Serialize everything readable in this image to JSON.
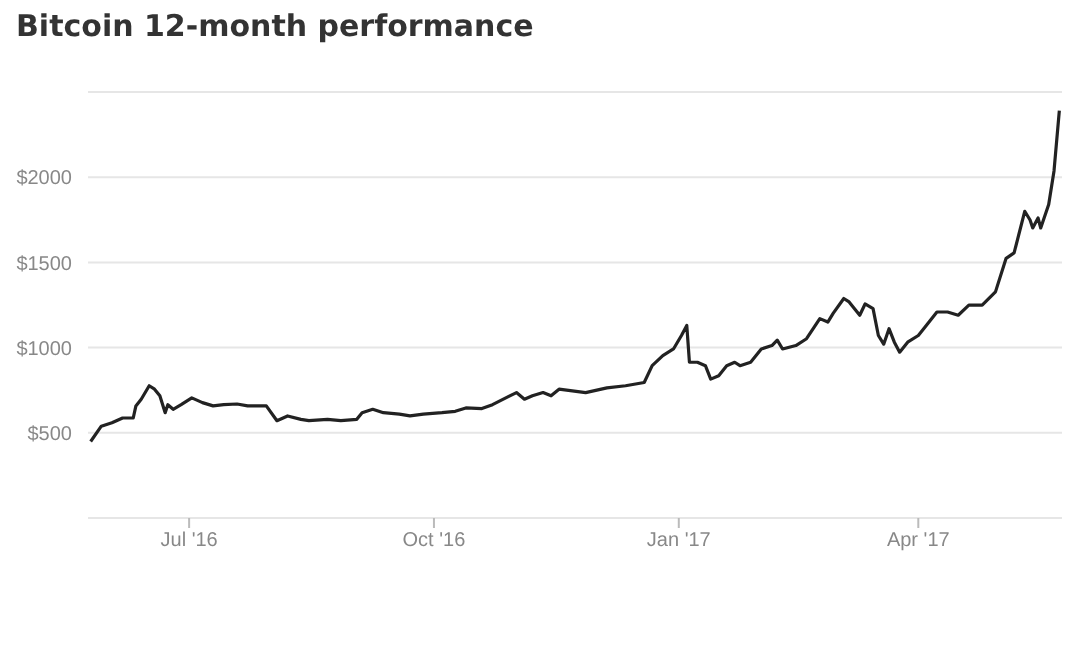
{
  "chart_data": {
    "type": "line",
    "title": "Bitcoin 12-month performance",
    "x": [
      "2016-05-25",
      "2016-05-29",
      "2016-06-02",
      "2016-06-06",
      "2016-06-10",
      "2016-06-11",
      "2016-06-13",
      "2016-06-16",
      "2016-06-18",
      "2016-06-20",
      "2016-06-22",
      "2016-06-23",
      "2016-06-25",
      "2016-06-28",
      "2016-07-02",
      "2016-07-06",
      "2016-07-10",
      "2016-07-14",
      "2016-07-19",
      "2016-07-23",
      "2016-07-26",
      "2016-07-30",
      "2016-08-03",
      "2016-08-07",
      "2016-08-12",
      "2016-08-15",
      "2016-08-22",
      "2016-08-27",
      "2016-09-02",
      "2016-09-04",
      "2016-09-08",
      "2016-09-12",
      "2016-09-18",
      "2016-09-22",
      "2016-09-27",
      "2016-10-04",
      "2016-10-09",
      "2016-10-13",
      "2016-10-19",
      "2016-10-23",
      "2016-10-28",
      "2016-11-01",
      "2016-11-04",
      "2016-11-07",
      "2016-11-11",
      "2016-11-14",
      "2016-11-17",
      "2016-11-27",
      "2016-12-05",
      "2016-12-12",
      "2016-12-19",
      "2016-12-22",
      "2016-12-26",
      "2016-12-30",
      "2017-01-02",
      "2017-01-04",
      "2017-01-05",
      "2017-01-08",
      "2017-01-11",
      "2017-01-13",
      "2017-01-16",
      "2017-01-19",
      "2017-01-22",
      "2017-01-24",
      "2017-01-28",
      "2017-02-01",
      "2017-02-05",
      "2017-02-07",
      "2017-02-09",
      "2017-02-14",
      "2017-02-18",
      "2017-02-23",
      "2017-02-26",
      "2017-02-28",
      "2017-03-04",
      "2017-03-06",
      "2017-03-10",
      "2017-03-12",
      "2017-03-15",
      "2017-03-17",
      "2017-03-19",
      "2017-03-21",
      "2017-03-23",
      "2017-03-25",
      "2017-03-28",
      "2017-04-01",
      "2017-04-04",
      "2017-04-08",
      "2017-04-12",
      "2017-04-16",
      "2017-04-20",
      "2017-04-25",
      "2017-04-30",
      "2017-05-04",
      "2017-05-07",
      "2017-05-11",
      "2017-05-13",
      "2017-05-14",
      "2017-05-16",
      "2017-05-17",
      "2017-05-20",
      "2017-05-22",
      "2017-05-24"
    ],
    "series": [
      {
        "color": "#222222",
        "values": [
          449,
          539,
          559,
          587,
          587,
          658,
          697,
          776,
          756,
          717,
          618,
          665,
          638,
          665,
          705,
          677,
          658,
          665,
          669,
          658,
          658,
          658,
          571,
          599,
          579,
          571,
          579,
          571,
          579,
          618,
          638,
          618,
          610,
          599,
          610,
          618,
          626,
          646,
          642,
          665,
          705,
          736,
          697,
          717,
          736,
          717,
          756,
          736,
          764,
          776,
          795,
          894,
          953,
          992,
          1071,
          1130,
          914,
          914,
          894,
          815,
          835,
          894,
          914,
          894,
          914,
          992,
          1012,
          1044,
          992,
          1012,
          1052,
          1170,
          1150,
          1201,
          1288,
          1268,
          1190,
          1256,
          1229,
          1071,
          1020,
          1111,
          1032,
          973,
          1032,
          1071,
          1130,
          1209,
          1209,
          1190,
          1249,
          1249,
          1327,
          1524,
          1556,
          1800,
          1749,
          1702,
          1761,
          1702,
          1840,
          2037,
          2391
        ]
      }
    ],
    "xlim": [
      "2016-05-24",
      "2017-05-25"
    ],
    "xticks": [
      {
        "value": "2016-07-01",
        "label": "Jul '16"
      },
      {
        "value": "2016-10-01",
        "label": "Oct '16"
      },
      {
        "value": "2017-01-01",
        "label": "Jan '17"
      },
      {
        "value": "2017-04-01",
        "label": "Apr '17"
      }
    ],
    "ylim": [
      0,
      2500
    ],
    "yticks": [
      {
        "value": 500,
        "label": "$500"
      },
      {
        "value": 1000,
        "label": "$1000"
      },
      {
        "value": 1500,
        "label": "$1500"
      },
      {
        "value": 2000,
        "label": "$2000"
      },
      {
        "value": 2500,
        "label": null
      }
    ],
    "grid": "y",
    "marker": "none",
    "line_style": "solid"
  }
}
